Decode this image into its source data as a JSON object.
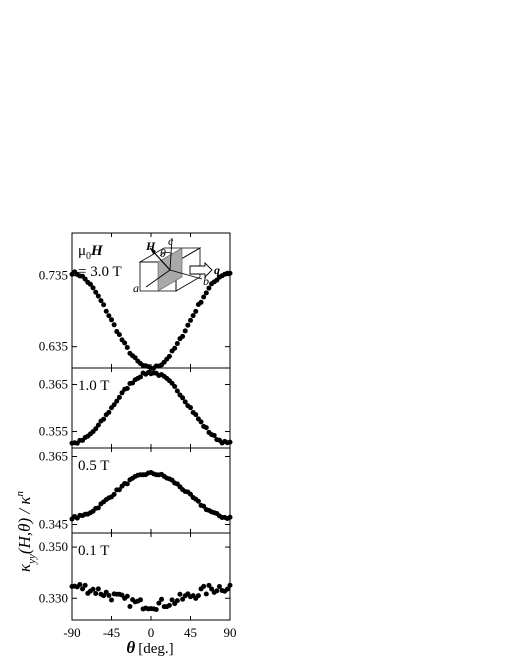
{
  "chart_data": {
    "type": "scatter",
    "x_axis": {
      "label_symbol": "θ",
      "label_unit": "[deg.]",
      "xlim": [
        -90,
        90
      ],
      "ticks": [
        -90,
        -45,
        0,
        45,
        90
      ]
    },
    "y_axis_label": {
      "kappa": "κ",
      "sub": "yy",
      "args": "(H,θ) / ",
      "sup_n": "n"
    },
    "inset": {
      "H": "H",
      "theta": "θ",
      "c": "c",
      "a": "a",
      "b": "b",
      "q": "q"
    },
    "panels": [
      {
        "label_lines": [
          "μ₀H",
          "= 3.0 T"
        ],
        "label_mu": "μ",
        "label_zero": "0",
        "label_H": "H",
        "label_value": "= 3.0 T",
        "ylim": [
          0.605,
          0.795
        ],
        "yticks": [
          0.635,
          0.735
        ],
        "ytick_labels": [
          "0.635",
          "0.735"
        ],
        "model": {
          "center": 0.672,
          "amplitude": 0.067,
          "noise": 0.002
        }
      },
      {
        "label": "1.0 T",
        "ylim": [
          0.3515,
          0.3685
        ],
        "yticks": [
          0.355,
          0.365
        ],
        "ytick_labels": [
          "0.355",
          "0.365"
        ],
        "model": {
          "center": 0.36,
          "amplitude": -0.0075,
          "noise": 0.0003
        }
      },
      {
        "label": "0.5 T",
        "ylim": [
          0.3425,
          0.3675
        ],
        "yticks": [
          0.345,
          0.365
        ],
        "ytick_labels": [
          "0.345",
          "0.365"
        ],
        "model": {
          "center": 0.3535,
          "amplitude": -0.0065,
          "noise": 0.0004
        }
      },
      {
        "label": "0.1 T",
        "ylim": [
          0.3215,
          0.3555
        ],
        "yticks": [
          0.33,
          0.35
        ],
        "ytick_labels": [
          "0.330",
          "0.350"
        ],
        "model": {
          "center": 0.331,
          "amplitude": 0.0035,
          "noise": 0.002
        }
      }
    ]
  }
}
